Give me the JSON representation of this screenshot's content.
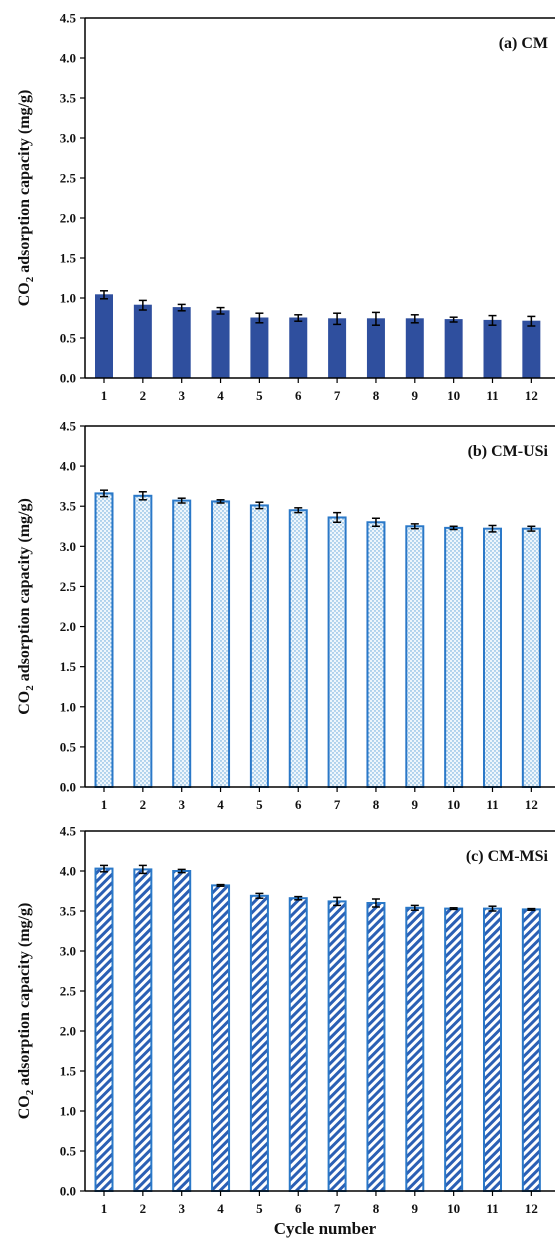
{
  "colors": {
    "solid_bar": "#2f4f9e",
    "outline": "#2a78c8",
    "dot_fill": "#eef6fc",
    "dot": "#5aa0d8",
    "hatch": "#2b5fb4",
    "axis": "#000000"
  },
  "chart_data": [
    {
      "type": "bar",
      "panel_label": "(a) CM",
      "pattern": "solid",
      "categories": [
        "1",
        "2",
        "3",
        "4",
        "5",
        "6",
        "7",
        "8",
        "9",
        "10",
        "11",
        "12"
      ],
      "values": [
        1.04,
        0.91,
        0.88,
        0.84,
        0.75,
        0.75,
        0.74,
        0.74,
        0.74,
        0.73,
        0.72,
        0.71
      ],
      "errors": [
        0.05,
        0.06,
        0.04,
        0.04,
        0.06,
        0.04,
        0.07,
        0.08,
        0.05,
        0.03,
        0.06,
        0.06
      ],
      "ylabel": "CO2 adsorption capacity (mg/g)",
      "ylim": [
        0,
        4.5
      ],
      "yticks": [
        "0.0",
        "0.5",
        "1.0",
        "1.5",
        "2.0",
        "2.5",
        "3.0",
        "3.5",
        "4.0",
        "4.5"
      ]
    },
    {
      "type": "bar",
      "panel_label": "(b) CM-USi",
      "pattern": "dotted",
      "categories": [
        "1",
        "2",
        "3",
        "4",
        "5",
        "6",
        "7",
        "8",
        "9",
        "10",
        "11",
        "12"
      ],
      "values": [
        3.66,
        3.63,
        3.57,
        3.56,
        3.51,
        3.45,
        3.36,
        3.3,
        3.25,
        3.23,
        3.22,
        3.22
      ],
      "errors": [
        0.04,
        0.05,
        0.03,
        0.02,
        0.04,
        0.03,
        0.06,
        0.05,
        0.03,
        0.02,
        0.04,
        0.03
      ],
      "ylabel": "CO2 adsorption capacity (mg/g)",
      "ylim": [
        0,
        4.5
      ],
      "yticks": [
        "0.0",
        "0.5",
        "1.0",
        "1.5",
        "2.0",
        "2.5",
        "3.0",
        "3.5",
        "4.0",
        "4.5"
      ]
    },
    {
      "type": "bar",
      "panel_label": "(c) CM-MSi",
      "pattern": "hatched",
      "categories": [
        "1",
        "2",
        "3",
        "4",
        "5",
        "6",
        "7",
        "8",
        "9",
        "10",
        "11",
        "12"
      ],
      "values": [
        4.03,
        4.02,
        4.0,
        3.82,
        3.69,
        3.66,
        3.62,
        3.6,
        3.54,
        3.53,
        3.53,
        3.52
      ],
      "errors": [
        0.04,
        0.05,
        0.02,
        0.01,
        0.03,
        0.02,
        0.05,
        0.05,
        0.03,
        0.01,
        0.03,
        0.01
      ],
      "ylabel": "CO2 adsorption capacity (mg/g)",
      "xlabel": "Cycle number",
      "ylim": [
        0,
        4.5
      ],
      "yticks": [
        "0.0",
        "0.5",
        "1.0",
        "1.5",
        "2.0",
        "2.5",
        "3.0",
        "3.5",
        "4.0",
        "4.5"
      ]
    }
  ]
}
